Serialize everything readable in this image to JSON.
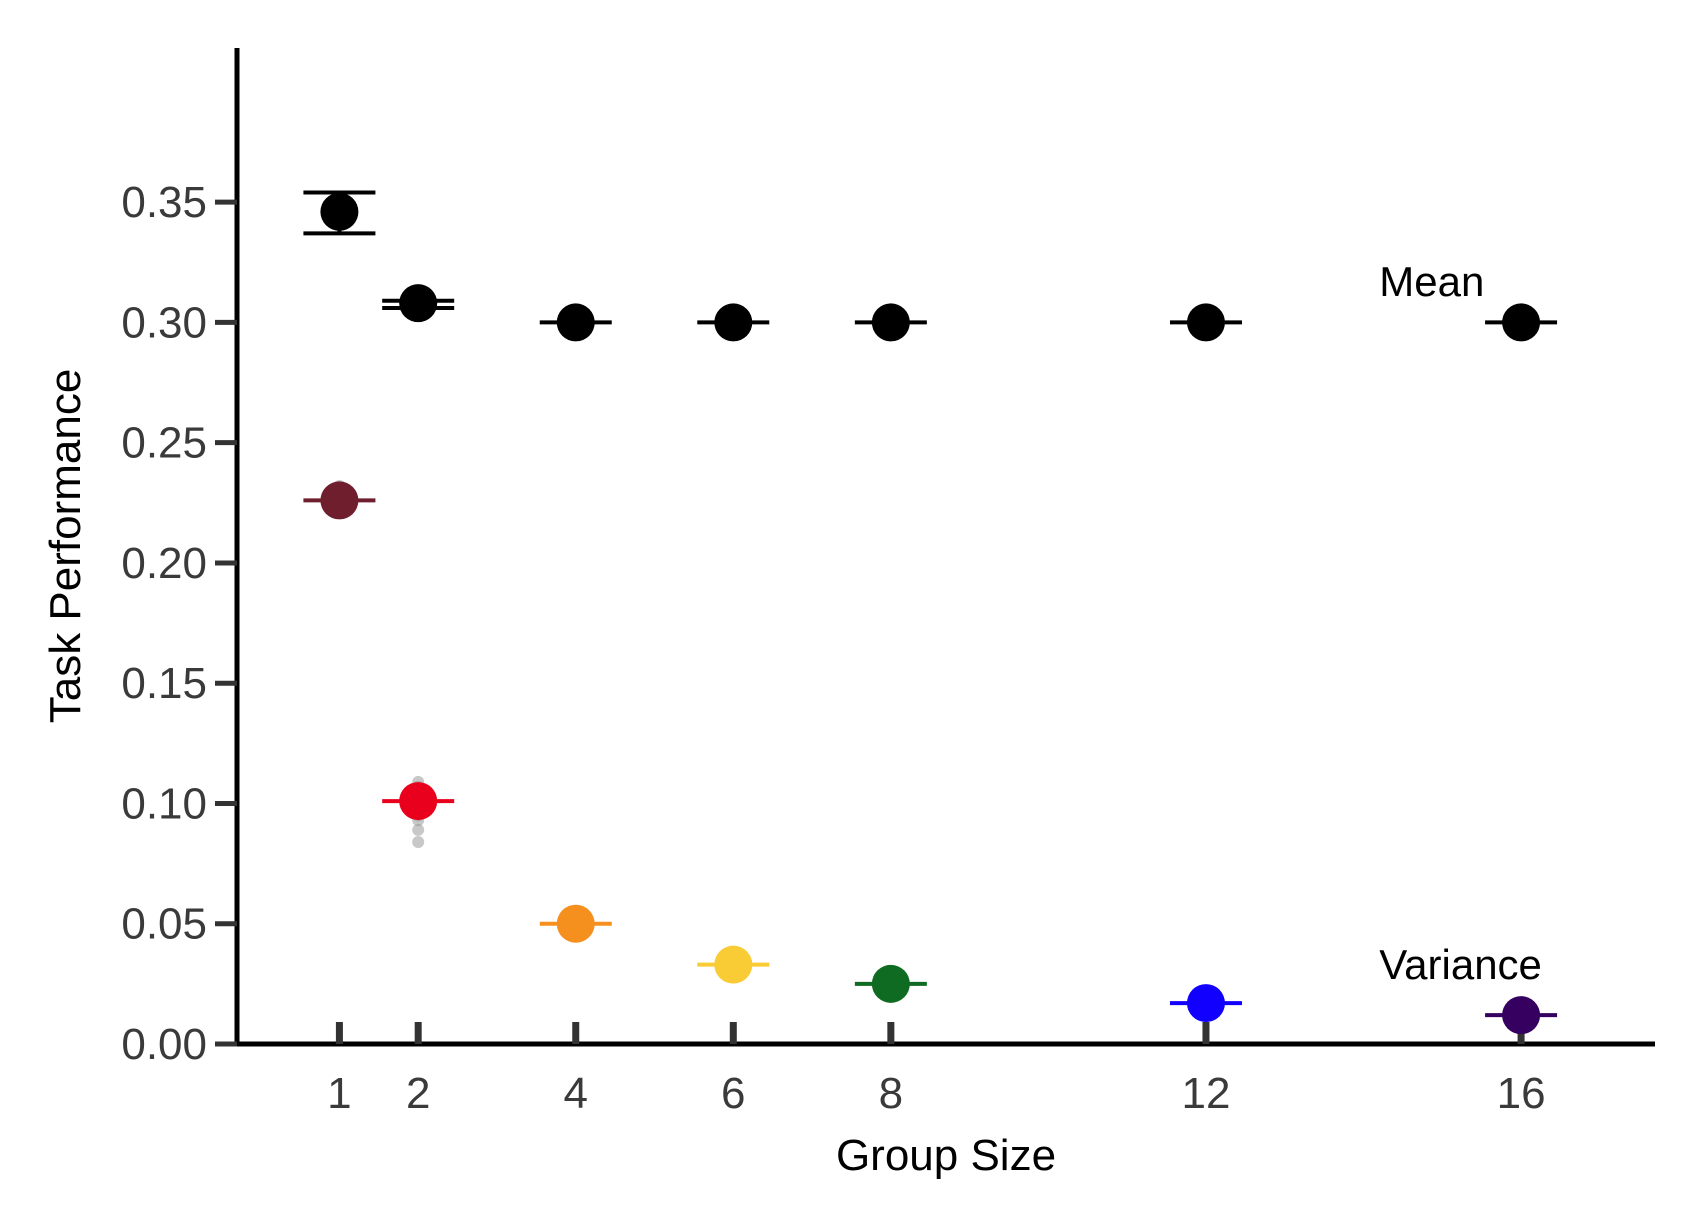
{
  "chart_data": {
    "type": "scatter",
    "title": "",
    "xlabel": "Group Size",
    "ylabel": "Task Performance",
    "xlim": [
      -0.3,
      17.7
    ],
    "ylim": [
      0,
      0.38
    ],
    "x_ticks": [
      1,
      2,
      4,
      6,
      8,
      12,
      16
    ],
    "x_tick_labels": [
      "1",
      "2",
      "4",
      "6",
      "8",
      "12",
      "16"
    ],
    "y_ticks": [
      0.0,
      0.05,
      0.1,
      0.15,
      0.2,
      0.25,
      0.3,
      0.35
    ],
    "y_tick_labels": [
      "0.00",
      "0.05",
      "0.10",
      "0.15",
      "0.20",
      "0.25",
      "0.30",
      "0.35"
    ],
    "grid": false,
    "annotations": [
      {
        "text": "Mean",
        "x": 14.2,
        "y": 0.311
      },
      {
        "text": "Variance",
        "x": 14.2,
        "y": 0.027
      }
    ],
    "series": [
      {
        "kind": "mean",
        "color": "#000000",
        "points": [
          {
            "x": 1,
            "y": 0.346,
            "err_low": 0.337,
            "err_high": 0.354
          },
          {
            "x": 2,
            "y": 0.308,
            "err_low": 0.306,
            "err_high": 0.309
          },
          {
            "x": 4,
            "y": 0.3,
            "err_low": 0.3,
            "err_high": 0.3
          },
          {
            "x": 6,
            "y": 0.3,
            "err_low": 0.3,
            "err_high": 0.3
          },
          {
            "x": 8,
            "y": 0.3,
            "err_low": 0.3,
            "err_high": 0.3
          },
          {
            "x": 12,
            "y": 0.3,
            "err_low": 0.3,
            "err_high": 0.3
          },
          {
            "x": 16,
            "y": 0.3,
            "err_low": 0.3,
            "err_high": 0.3
          }
        ]
      },
      {
        "kind": "variance",
        "points": [
          {
            "x": 1,
            "y": 0.226,
            "color": "#6e1e2d"
          },
          {
            "x": 2,
            "y": 0.101,
            "color": "#e8001c"
          },
          {
            "x": 4,
            "y": 0.05,
            "color": "#f5901e"
          },
          {
            "x": 6,
            "y": 0.033,
            "color": "#f9cb35"
          },
          {
            "x": 8,
            "y": 0.025,
            "color": "#0e6b21"
          },
          {
            "x": 12,
            "y": 0.017,
            "color": "#1200ff"
          },
          {
            "x": 16,
            "y": 0.012,
            "color": "#35005f"
          }
        ]
      }
    ],
    "replicates": [
      {
        "x": 1,
        "values": [
          0.223,
          0.225,
          0.228,
          0.23,
          0.232
        ]
      },
      {
        "x": 2,
        "values": [
          0.084,
          0.089,
          0.093,
          0.095,
          0.098,
          0.104,
          0.107,
          0.109
        ]
      }
    ]
  }
}
